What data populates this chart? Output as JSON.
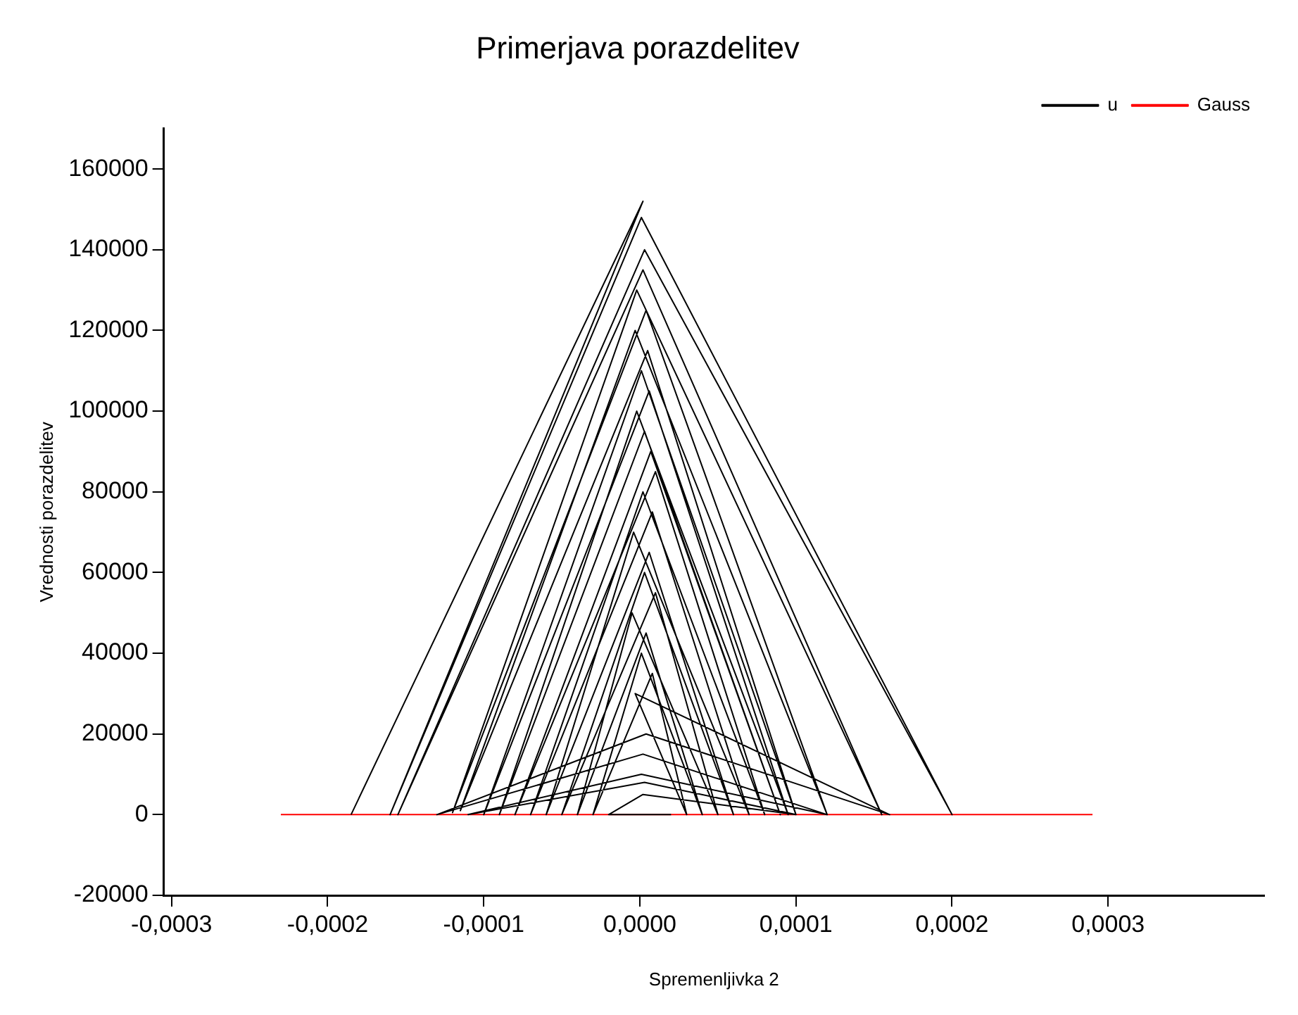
{
  "chart_data": {
    "type": "line",
    "title": "Primerjava porazdelitev",
    "xlabel": "Spremenljivka 2",
    "ylabel": "Vrednosti porazdelitev",
    "xlim": [
      -0.000305,
      0.0004
    ],
    "ylim": [
      -20000,
      170000
    ],
    "xticks": [
      {
        "value": -0.0003,
        "label": "-0,0003"
      },
      {
        "value": -0.0002,
        "label": "-0,0002"
      },
      {
        "value": -0.0001,
        "label": "-0,0001"
      },
      {
        "value": 0,
        "label": "0,0000"
      },
      {
        "value": 0.0001,
        "label": "0,0001"
      },
      {
        "value": 0.0002,
        "label": "0,0002"
      },
      {
        "value": 0.0003,
        "label": "0,0003"
      }
    ],
    "yticks": [
      -20000,
      0,
      20000,
      40000,
      60000,
      80000,
      100000,
      120000,
      140000,
      160000
    ],
    "grid": false,
    "legend": "top right",
    "marker": "none",
    "line_style": "solid",
    "series": [
      {
        "name": "u",
        "color": "#000000",
        "x": [
          -0.000185,
          2e-06,
          -0.00016,
          1e-06,
          0.0002,
          3e-06,
          -0.000155,
          2e-06,
          0.000155,
          -2e-06,
          -0.00012,
          4e-06,
          0.00012,
          -3e-06,
          -0.000115,
          5e-06,
          0.0001,
          1e-06,
          -0.0001,
          6e-06,
          9.5e-05,
          -2e-06,
          -9e-05,
          3e-06,
          9e-05,
          7e-06,
          -8e-05,
          1e-05,
          8e-05,
          2e-06,
          -7e-05,
          8e-06,
          7e-05,
          -4e-06,
          -6e-05,
          6e-06,
          6e-05,
          3e-06,
          -5e-05,
          1e-05,
          5e-05,
          -5e-06,
          -4e-05,
          4e-06,
          4e-05,
          1e-06,
          -3e-05,
          8e-06,
          3e-05,
          -3e-06,
          0.00016,
          4e-06,
          -0.00013,
          2e-06,
          0.00012,
          1e-06,
          -0.00011,
          3e-06,
          0.0001,
          2e-06,
          -2e-05,
          2e-05
        ],
        "values": [
          0,
          152000,
          0,
          148000,
          0,
          140000,
          0,
          135000,
          0,
          130000,
          500,
          125000,
          0,
          120000,
          1000,
          115000,
          0,
          110000,
          0,
          105000,
          0,
          100000,
          0,
          95000,
          0,
          90000,
          0,
          85000,
          0,
          80000,
          0,
          75000,
          0,
          70000,
          0,
          65000,
          0,
          60000,
          0,
          55000,
          0,
          50000,
          0,
          45000,
          0,
          40000,
          0,
          35000,
          0,
          30000,
          0,
          20000,
          0,
          15000,
          0,
          10000,
          0,
          8000,
          0,
          5000,
          0,
          0
        ]
      },
      {
        "name": "Gauss",
        "color": "#ff0000",
        "x": [
          -0.00023,
          -0.0001,
          0,
          0.0001,
          0.00029
        ],
        "values": [
          0,
          0,
          0,
          0,
          0
        ]
      }
    ]
  }
}
